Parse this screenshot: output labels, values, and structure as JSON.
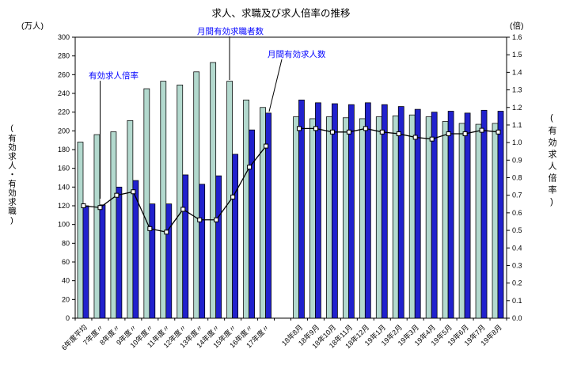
{
  "annotations": {
    "ratio": "有効求人倍率",
    "jobseekers": "月間有効求職者数",
    "jobopenings": "月間有効求人数"
  },
  "colors": {
    "jobseekers_bar": "#b3d9ce",
    "jobopenings_bar": "#2121cd",
    "annotation_text": "#0000ff",
    "line": "#000000",
    "marker_fill": "#ffffff"
  },
  "chart_data": {
    "type": "bar",
    "combo": "bar+line",
    "title": "求人、求職及び求人倍率の推移",
    "categories": [
      "6年度平均",
      "7年度〃",
      "8年度〃",
      "9年度〃",
      "10年度〃",
      "11年度〃",
      "12年度〃",
      "13年度〃",
      "14年度〃",
      "15年度〃",
      "16年度〃",
      "17年度〃",
      "18年8月",
      "18年9月",
      "18年10月",
      "18年11月",
      "18年12月",
      "19年1月",
      "19年2月",
      "19年3月",
      "19年4月",
      "19年5月",
      "19年6月",
      "19年7月",
      "19年8月"
    ],
    "gap_after_index": 11,
    "series": [
      {
        "name": "月間有効求職者数",
        "type": "bar",
        "axis": "left",
        "values": [
          188,
          196,
          199,
          211,
          245,
          253,
          249,
          263,
          273,
          253,
          233,
          225,
          215,
          213,
          215,
          214,
          213,
          215,
          216,
          217,
          215,
          210,
          208,
          207,
          208
        ]
      },
      {
        "name": "月間有効求人数",
        "type": "bar",
        "axis": "left",
        "values": [
          120,
          121,
          140,
          147,
          122,
          122,
          153,
          143,
          152,
          175,
          201,
          219,
          233,
          230,
          229,
          228,
          230,
          228,
          226,
          223,
          220,
          221,
          219,
          222,
          221
        ]
      },
      {
        "name": "有効求人倍率",
        "type": "line",
        "axis": "right",
        "values": [
          0.64,
          0.63,
          0.7,
          0.72,
          0.51,
          0.49,
          0.62,
          0.56,
          0.56,
          0.69,
          0.86,
          0.98,
          1.08,
          1.08,
          1.06,
          1.06,
          1.08,
          1.06,
          1.05,
          1.03,
          1.02,
          1.05,
          1.05,
          1.07,
          1.06
        ]
      }
    ],
    "left_axis": {
      "unit": "(万人)",
      "title": "(有効求人・有効求職)",
      "min": 0,
      "max": 300,
      "tick_step": 20
    },
    "right_axis": {
      "unit": "(倍)",
      "title": "(有効求人倍率)",
      "min": 0,
      "max": 1.6,
      "tick_step": 0.1
    },
    "grid": "off",
    "legend": "none (labeled by in-plot annotations)"
  }
}
